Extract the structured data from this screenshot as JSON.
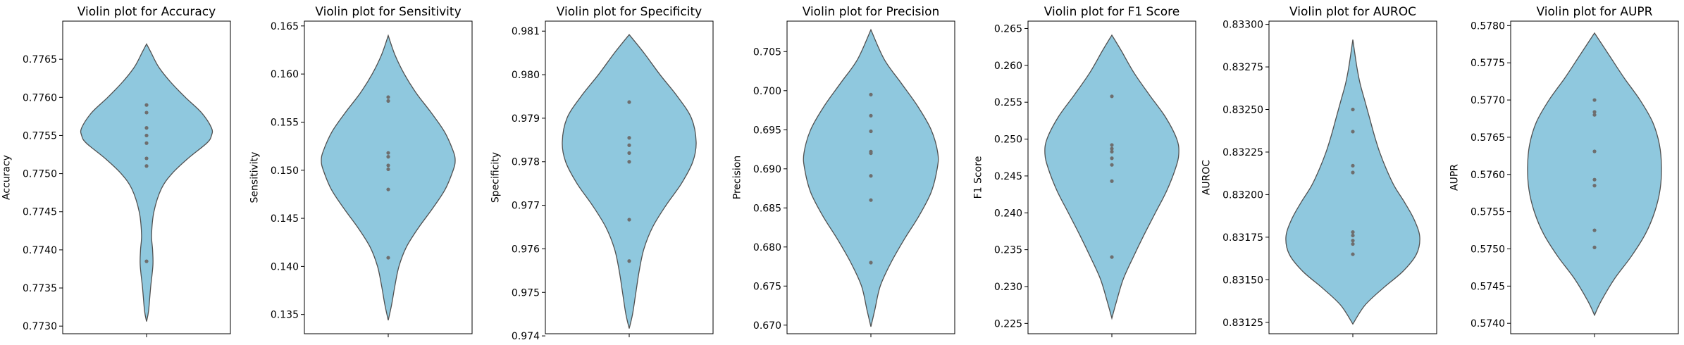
{
  "chart_data": [
    {
      "type": "violin",
      "title": "Violin plot for Accuracy",
      "xlabel": "",
      "ylabel": "Accuracy",
      "ylim": [
        0.7729,
        0.777
      ],
      "yticks": [
        0.773,
        0.7735,
        0.774,
        0.7745,
        0.775,
        0.7755,
        0.776,
        0.7765
      ],
      "ytick_labels": [
        "0.7730",
        "0.7735",
        "0.7740",
        "0.7745",
        "0.7750",
        "0.7755",
        "0.7760",
        "0.7765"
      ],
      "points": [
        0.7759,
        0.7758,
        0.7756,
        0.7755,
        0.7754,
        0.7752,
        0.7751,
        0.77385
      ],
      "violin_range": [
        0.77306,
        0.7767
      ],
      "density": [
        [
          0.77306,
          0
        ],
        [
          0.7732,
          0.03
        ],
        [
          0.7735,
          0.06
        ],
        [
          0.7738,
          0.095
        ],
        [
          0.774,
          0.09
        ],
        [
          0.7742,
          0.075
        ],
        [
          0.7745,
          0.11
        ],
        [
          0.7748,
          0.22
        ],
        [
          0.775,
          0.38
        ],
        [
          0.7752,
          0.62
        ],
        [
          0.7754,
          0.9
        ],
        [
          0.7755,
          0.97
        ],
        [
          0.7756,
          0.97
        ],
        [
          0.7758,
          0.82
        ],
        [
          0.776,
          0.58
        ],
        [
          0.7762,
          0.36
        ],
        [
          0.7764,
          0.18
        ],
        [
          0.7766,
          0.06
        ],
        [
          0.7767,
          0
        ]
      ]
    },
    {
      "type": "violin",
      "title": "Violin plot for Sensitivity",
      "xlabel": "",
      "ylabel": "Sensitivity",
      "ylim": [
        0.133,
        0.1655
      ],
      "yticks": [
        0.135,
        0.14,
        0.145,
        0.15,
        0.155,
        0.16,
        0.165
      ],
      "ytick_labels": [
        "0.135",
        "0.140",
        "0.145",
        "0.150",
        "0.155",
        "0.160",
        "0.165"
      ],
      "points": [
        0.1576,
        0.1572,
        0.1518,
        0.1514,
        0.1505,
        0.1501,
        0.148,
        0.1409
      ],
      "violin_range": [
        0.1344,
        0.164
      ],
      "density": [
        [
          0.1344,
          0
        ],
        [
          0.136,
          0.05
        ],
        [
          0.138,
          0.1
        ],
        [
          0.14,
          0.16
        ],
        [
          0.142,
          0.27
        ],
        [
          0.144,
          0.45
        ],
        [
          0.146,
          0.66
        ],
        [
          0.148,
          0.85
        ],
        [
          0.15,
          0.97
        ],
        [
          0.151,
          1.0
        ],
        [
          0.152,
          0.97
        ],
        [
          0.154,
          0.84
        ],
        [
          0.156,
          0.64
        ],
        [
          0.158,
          0.42
        ],
        [
          0.16,
          0.24
        ],
        [
          0.162,
          0.1
        ],
        [
          0.164,
          0
        ]
      ]
    },
    {
      "type": "violin",
      "title": "Violin plot for Specificity",
      "xlabel": "",
      "ylabel": "Specificity",
      "ylim": [
        0.97405,
        0.98123
      ],
      "yticks": [
        0.974,
        0.975,
        0.976,
        0.977,
        0.978,
        0.979,
        0.98,
        0.981
      ],
      "ytick_labels": [
        "0.974",
        "0.975",
        "0.976",
        "0.977",
        "0.978",
        "0.979",
        "0.980",
        "0.981"
      ],
      "points": [
        0.97937,
        0.97855,
        0.97838,
        0.9782,
        0.978,
        0.97667,
        0.97572
      ],
      "violin_range": [
        0.97417,
        0.98092
      ],
      "density": [
        [
          0.97417,
          0
        ],
        [
          0.9745,
          0.05
        ],
        [
          0.975,
          0.1
        ],
        [
          0.9755,
          0.15
        ],
        [
          0.976,
          0.22
        ],
        [
          0.9765,
          0.35
        ],
        [
          0.977,
          0.55
        ],
        [
          0.9775,
          0.78
        ],
        [
          0.978,
          0.95
        ],
        [
          0.97845,
          1.0
        ],
        [
          0.979,
          0.93
        ],
        [
          0.9795,
          0.72
        ],
        [
          0.98,
          0.46
        ],
        [
          0.9805,
          0.22
        ],
        [
          0.98092,
          0
        ]
      ]
    },
    {
      "type": "violin",
      "title": "Violin plot for Precision",
      "xlabel": "",
      "ylabel": "Precision",
      "ylim": [
        0.6689,
        0.7089
      ],
      "yticks": [
        0.67,
        0.675,
        0.68,
        0.685,
        0.69,
        0.695,
        0.7,
        0.705
      ],
      "ytick_labels": [
        "0.670",
        "0.675",
        "0.680",
        "0.685",
        "0.690",
        "0.695",
        "0.700",
        "0.705"
      ],
      "points": [
        0.6995,
        0.6968,
        0.6948,
        0.6922,
        0.692,
        0.6891,
        0.686,
        0.678
      ],
      "violin_range": [
        0.6698,
        0.7078
      ],
      "density": [
        [
          0.6698,
          0
        ],
        [
          0.672,
          0.06
        ],
        [
          0.675,
          0.14
        ],
        [
          0.678,
          0.3
        ],
        [
          0.681,
          0.5
        ],
        [
          0.684,
          0.72
        ],
        [
          0.687,
          0.9
        ],
        [
          0.69,
          0.99
        ],
        [
          0.692,
          1.0
        ],
        [
          0.695,
          0.9
        ],
        [
          0.698,
          0.7
        ],
        [
          0.701,
          0.45
        ],
        [
          0.704,
          0.2
        ],
        [
          0.7078,
          0
        ]
      ]
    },
    {
      "type": "violin",
      "title": "Violin plot for F1 Score",
      "xlabel": "",
      "ylabel": "F1 Score",
      "ylim": [
        0.2236,
        0.266
      ],
      "yticks": [
        0.225,
        0.23,
        0.235,
        0.24,
        0.245,
        0.25,
        0.255,
        0.26,
        0.265
      ],
      "ytick_labels": [
        "0.225",
        "0.230",
        "0.235",
        "0.240",
        "0.245",
        "0.250",
        "0.255",
        "0.260",
        "0.265"
      ],
      "points": [
        0.2558,
        0.2492,
        0.2487,
        0.2483,
        0.2474,
        0.2465,
        0.2443,
        0.234
      ],
      "violin_range": [
        0.2257,
        0.2641
      ],
      "density": [
        [
          0.2257,
          0
        ],
        [
          0.228,
          0.07
        ],
        [
          0.231,
          0.17
        ],
        [
          0.234,
          0.32
        ],
        [
          0.237,
          0.48
        ],
        [
          0.24,
          0.65
        ],
        [
          0.243,
          0.82
        ],
        [
          0.246,
          0.95
        ],
        [
          0.248,
          1.0
        ],
        [
          0.25,
          0.97
        ],
        [
          0.253,
          0.8
        ],
        [
          0.256,
          0.56
        ],
        [
          0.259,
          0.33
        ],
        [
          0.262,
          0.14
        ],
        [
          0.2641,
          0
        ]
      ]
    },
    {
      "type": "violin",
      "title": "Violin plot for AUROC",
      "xlabel": "",
      "ylabel": "AUROC",
      "ylim": [
        0.831183,
        0.833019
      ],
      "yticks": [
        0.83125,
        0.8315,
        0.83175,
        0.832,
        0.83225,
        0.8325,
        0.83275,
        0.833
      ],
      "ytick_labels": [
        "0.83125",
        "0.83150",
        "0.83175",
        "0.83200",
        "0.83225",
        "0.83250",
        "0.83275",
        "0.83300"
      ],
      "points": [
        0.8325,
        0.83237,
        0.83217,
        0.83213,
        0.83178,
        0.83176,
        0.83173,
        0.83171,
        0.83165
      ],
      "violin_range": [
        0.83124,
        0.83291
      ],
      "density": [
        [
          0.83124,
          0
        ],
        [
          0.83135,
          0.18
        ],
        [
          0.83145,
          0.45
        ],
        [
          0.83155,
          0.75
        ],
        [
          0.83165,
          0.95
        ],
        [
          0.83175,
          1.0
        ],
        [
          0.83185,
          0.92
        ],
        [
          0.83195,
          0.78
        ],
        [
          0.83205,
          0.62
        ],
        [
          0.83215,
          0.5
        ],
        [
          0.83225,
          0.4
        ],
        [
          0.83235,
          0.32
        ],
        [
          0.83245,
          0.25
        ],
        [
          0.83255,
          0.18
        ],
        [
          0.83265,
          0.11
        ],
        [
          0.83275,
          0.06
        ],
        [
          0.83291,
          0
        ]
      ]
    },
    {
      "type": "violin",
      "title": "Violin plot for AUPR",
      "xlabel": "",
      "ylabel": "AUPR",
      "ylim": [
        0.57386,
        0.57806
      ],
      "yticks": [
        0.574,
        0.5745,
        0.575,
        0.5755,
        0.576,
        0.5765,
        0.577,
        0.5775,
        0.578
      ],
      "ytick_labels": [
        "0.5740",
        "0.5745",
        "0.5750",
        "0.5755",
        "0.5760",
        "0.5765",
        "0.5770",
        "0.5775",
        "0.5780"
      ],
      "points": [
        0.577,
        0.57684,
        0.5768,
        0.57631,
        0.57593,
        0.57585,
        0.57525,
        0.57502
      ],
      "violin_range": [
        0.57411,
        0.5779
      ],
      "density": [
        [
          0.57411,
          0
        ],
        [
          0.5743,
          0.1
        ],
        [
          0.5746,
          0.3
        ],
        [
          0.5749,
          0.55
        ],
        [
          0.5752,
          0.76
        ],
        [
          0.5755,
          0.9
        ],
        [
          0.5758,
          0.98
        ],
        [
          0.5761,
          1.0
        ],
        [
          0.5764,
          0.97
        ],
        [
          0.5767,
          0.87
        ],
        [
          0.577,
          0.68
        ],
        [
          0.5773,
          0.44
        ],
        [
          0.5776,
          0.22
        ],
        [
          0.5779,
          0
        ]
      ]
    }
  ],
  "colors": {
    "violin_fill": "#8FC8DE",
    "violin_edge": "#505050",
    "point": "#6E6E6E",
    "axes": "#000000"
  }
}
